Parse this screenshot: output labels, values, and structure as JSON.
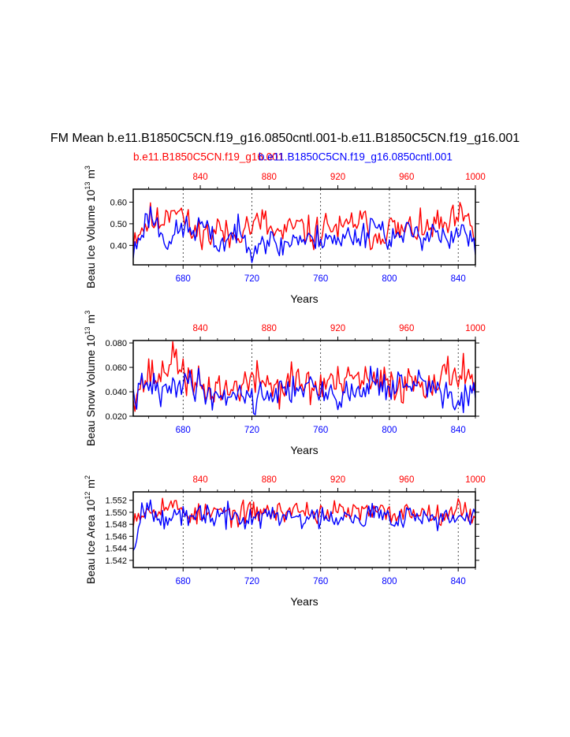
{
  "figure": {
    "title": "FM Mean b.e11.B1850C5CN.f19_g16.0850cntl.001-b.e11.B1850C5CN.f19_g16.001",
    "legend_red": "b.e11.B1850C5CN.f19_g16.001",
    "legend_blue": "b.e11.B1850C5CN.f19_g16.0850cntl.001",
    "colors": {
      "red": "#ff0000",
      "blue": "#0000ff",
      "axis": "#000000"
    }
  },
  "chart_data": [
    {
      "type": "line",
      "id": "ice-volume",
      "ylabel": "Beau Ice Volume 10",
      "ylabel_exp": "13",
      "ylabel_unit": " m",
      "ylabel_unit_exp": "3",
      "xlabel": "Years",
      "ylim": [
        0.31,
        0.66
      ],
      "yticks": [
        0.4,
        0.5,
        0.6
      ],
      "ytick_labels": [
        "0.40",
        "0.50",
        "0.60"
      ],
      "bottom_axis": {
        "range": [
          651,
          850
        ],
        "ticks": [
          680,
          720,
          760,
          800,
          840
        ],
        "labels": [
          "680",
          "720",
          "760",
          "800",
          "840"
        ]
      },
      "top_axis": {
        "range": [
          801,
          1000
        ],
        "ticks": [
          840,
          880,
          920,
          960,
          1000
        ],
        "labels": [
          "840",
          "880",
          "920",
          "960",
          "1000"
        ]
      },
      "gridlines_x": [
        680,
        720,
        760,
        800,
        840
      ],
      "series": [
        {
          "name": "b.e11.B1850C5CN.f19_g16.001",
          "color": "#ff0000",
          "x_start": 801,
          "x_end": 1000,
          "anchors": [
            0.44,
            0.48,
            0.52,
            0.5,
            0.56,
            0.59,
            0.52,
            0.45,
            0.47,
            0.44,
            0.49,
            0.43,
            0.45,
            0.5,
            0.48,
            0.52,
            0.47,
            0.45,
            0.46,
            0.49,
            0.47,
            0.44,
            0.47,
            0.5,
            0.46,
            0.48,
            0.52,
            0.5,
            0.44,
            0.46,
            0.49,
            0.46,
            0.47,
            0.48,
            0.45,
            0.5,
            0.48,
            0.49,
            0.53,
            0.51,
            0.45
          ],
          "min": 0.38,
          "max": 0.65,
          "jitter": 0.055,
          "seed": 11
        },
        {
          "name": "b.e11.B1850C5CN.f19_g16.0850cntl.001",
          "color": "#0000ff",
          "x_start": 651,
          "x_end": 850,
          "anchors": [
            0.36,
            0.47,
            0.55,
            0.48,
            0.42,
            0.45,
            0.49,
            0.46,
            0.5,
            0.44,
            0.4,
            0.43,
            0.47,
            0.42,
            0.4,
            0.43,
            0.42,
            0.39,
            0.41,
            0.44,
            0.42,
            0.42,
            0.44,
            0.45,
            0.4,
            0.45,
            0.44,
            0.45,
            0.52,
            0.47,
            0.44,
            0.43,
            0.45,
            0.47,
            0.44,
            0.48,
            0.44,
            0.4,
            0.46,
            0.45,
            0.38
          ],
          "min": 0.32,
          "max": 0.6,
          "jitter": 0.045,
          "seed": 23
        }
      ]
    },
    {
      "type": "line",
      "id": "snow-volume",
      "ylabel": "Beau Snow Volume 10",
      "ylabel_exp": "13",
      "ylabel_unit": " m",
      "ylabel_unit_exp": "3",
      "xlabel": "Years",
      "ylim": [
        0.02,
        0.082
      ],
      "yticks": [
        0.02,
        0.04,
        0.06,
        0.08
      ],
      "ytick_labels": [
        "0.020",
        "0.040",
        "0.060",
        "0.080"
      ],
      "bottom_axis": {
        "range": [
          651,
          850
        ],
        "ticks": [
          680,
          720,
          760,
          800,
          840
        ],
        "labels": [
          "680",
          "720",
          "760",
          "800",
          "840"
        ]
      },
      "top_axis": {
        "range": [
          801,
          1000
        ],
        "ticks": [
          840,
          880,
          920,
          960,
          1000
        ],
        "labels": [
          "840",
          "880",
          "920",
          "960",
          "1000"
        ]
      },
      "gridlines_x": [
        680,
        720,
        760,
        800,
        840
      ],
      "series": [
        {
          "name": "b.e11.B1850C5CN.f19_g16.001",
          "color": "#ff0000",
          "x_start": 801,
          "x_end": 1000,
          "anchors": [
            0.04,
            0.046,
            0.055,
            0.05,
            0.064,
            0.068,
            0.056,
            0.042,
            0.045,
            0.04,
            0.046,
            0.038,
            0.044,
            0.048,
            0.046,
            0.052,
            0.046,
            0.042,
            0.047,
            0.05,
            0.046,
            0.042,
            0.044,
            0.05,
            0.045,
            0.045,
            0.052,
            0.05,
            0.044,
            0.046,
            0.049,
            0.045,
            0.046,
            0.05,
            0.047,
            0.052,
            0.049,
            0.055,
            0.058,
            0.056,
            0.05
          ],
          "min": 0.024,
          "max": 0.081,
          "jitter": 0.011,
          "seed": 37
        },
        {
          "name": "b.e11.B1850C5CN.f19_g16.0850cntl.001",
          "color": "#0000ff",
          "x_start": 651,
          "x_end": 850,
          "anchors": [
            0.034,
            0.042,
            0.046,
            0.04,
            0.038,
            0.048,
            0.05,
            0.046,
            0.045,
            0.038,
            0.036,
            0.038,
            0.04,
            0.038,
            0.034,
            0.036,
            0.04,
            0.04,
            0.04,
            0.044,
            0.046,
            0.042,
            0.036,
            0.04,
            0.038,
            0.036,
            0.04,
            0.042,
            0.052,
            0.048,
            0.04,
            0.046,
            0.044,
            0.048,
            0.045,
            0.044,
            0.04,
            0.036,
            0.032,
            0.034,
            0.04
          ],
          "min": 0.02,
          "max": 0.076,
          "jitter": 0.009,
          "seed": 41
        }
      ]
    },
    {
      "type": "line",
      "id": "ice-area",
      "ylabel": "Beau Ice Area 10",
      "ylabel_exp": "12",
      "ylabel_unit": " m",
      "ylabel_unit_exp": "2",
      "xlabel": "Years",
      "ylim": [
        1.5408,
        1.5534
      ],
      "yticks": [
        1.542,
        1.544,
        1.546,
        1.548,
        1.55,
        1.552
      ],
      "ytick_labels": [
        "1.542",
        "1.544",
        "1.546",
        "1.548",
        "1.550",
        "1.552"
      ],
      "bottom_axis": {
        "range": [
          651,
          850
        ],
        "ticks": [
          680,
          720,
          760,
          800,
          840
        ],
        "labels": [
          "680",
          "720",
          "760",
          "800",
          "840"
        ]
      },
      "top_axis": {
        "range": [
          801,
          1000
        ],
        "ticks": [
          840,
          880,
          920,
          960,
          1000
        ],
        "labels": [
          "840",
          "880",
          "920",
          "960",
          "1000"
        ]
      },
      "gridlines_x": [
        680,
        720,
        760,
        800,
        840
      ],
      "series": [
        {
          "name": "b.e11.B1850C5CN.f19_g16.001",
          "color": "#ff0000",
          "x_start": 801,
          "x_end": 1000,
          "anchors": [
            1.5495,
            1.55,
            1.5505,
            1.551,
            1.5512,
            1.5508,
            1.5502,
            1.5495,
            1.5495,
            1.5497,
            1.5502,
            1.5498,
            1.5495,
            1.5498,
            1.55,
            1.5502,
            1.55,
            1.55,
            1.5502,
            1.5505,
            1.5503,
            1.55,
            1.5498,
            1.5502,
            1.55,
            1.55,
            1.5502,
            1.55,
            1.5498,
            1.55,
            1.5498,
            1.5497,
            1.55,
            1.5502,
            1.55,
            1.5498,
            1.55,
            1.5502,
            1.5505,
            1.55,
            1.5498
          ],
          "min": 1.5458,
          "max": 1.5532,
          "jitter": 0.0013,
          "seed": 53
        },
        {
          "name": "b.e11.B1850C5CN.f19_g16.0850cntl.001",
          "color": "#0000ff",
          "x_start": 651,
          "x_end": 850,
          "anchors": [
            1.544,
            1.5505,
            1.551,
            1.55,
            1.549,
            1.5495,
            1.5485,
            1.549,
            1.55,
            1.5495,
            1.549,
            1.5492,
            1.5495,
            1.5488,
            1.549,
            1.5492,
            1.5495,
            1.549,
            1.5492,
            1.5495,
            1.549,
            1.5488,
            1.5493,
            1.5497,
            1.549,
            1.55,
            1.5495,
            1.5492,
            1.55,
            1.5495,
            1.549,
            1.5495,
            1.5498,
            1.5495,
            1.549,
            1.5492,
            1.5488,
            1.549,
            1.5485,
            1.5485,
            1.55
          ],
          "min": 1.541,
          "max": 1.5532,
          "jitter": 0.0014,
          "seed": 67
        }
      ]
    }
  ]
}
